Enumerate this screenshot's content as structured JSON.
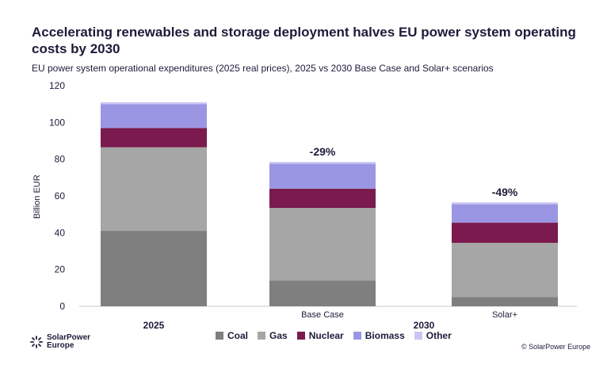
{
  "title": "Accelerating renewables and storage deployment halves EU power system operating costs by 2030",
  "subtitle": "EU power system operational expenditures (2025 real prices), 2025 vs 2030 Base Case and Solar+ scenarios",
  "logo_text": "SolarPower Europe",
  "copyright": "© SolarPower Europe",
  "colors": {
    "Coal": "#7f7f7f",
    "Gas": "#a6a6a6",
    "Nuclear": "#7a1a4e",
    "Biomass": "#9b96e3",
    "Other": "#c9c6f4"
  },
  "chart_data": {
    "type": "bar",
    "stacked": true,
    "ylabel": "Billion EUR",
    "ylim": [
      0,
      120
    ],
    "yticks": [
      0,
      20,
      40,
      60,
      80,
      100,
      120
    ],
    "categories": [
      "",
      "Base Case",
      "Solar+"
    ],
    "groups": [
      {
        "label": "2025",
        "categories": [
          ""
        ]
      },
      {
        "label": "2030",
        "categories": [
          "Base Case",
          "Solar+"
        ]
      }
    ],
    "series": [
      {
        "name": "Coal",
        "values": [
          41,
          14,
          5
        ]
      },
      {
        "name": "Gas",
        "values": [
          45.5,
          39.5,
          29.5
        ]
      },
      {
        "name": "Nuclear",
        "values": [
          10.5,
          10.5,
          11
        ]
      },
      {
        "name": "Biomass",
        "values": [
          13,
          13.5,
          10
        ]
      },
      {
        "name": "Other",
        "values": [
          1,
          1,
          1
        ]
      }
    ],
    "annotations": [
      "",
      "-29%",
      "-49%"
    ],
    "legend": {
      "position": "bottom",
      "entries": [
        "Coal",
        "Gas",
        "Nuclear",
        "Biomass",
        "Other"
      ]
    },
    "grid": false
  }
}
